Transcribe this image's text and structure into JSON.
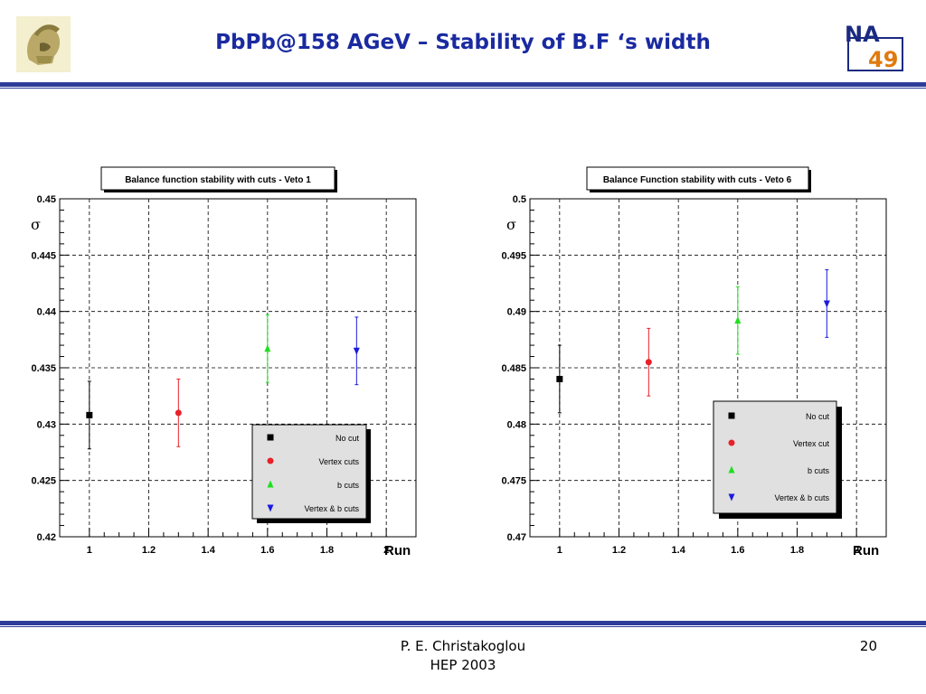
{
  "slide": {
    "title": "PbPb@158 AGeV – Stability of B.F ‘s width",
    "author": "P. E. Christakoglou",
    "conference": "HEP 2003",
    "page_number": "20",
    "right_logo_text_top": "NA",
    "right_logo_text_bottom": "49"
  },
  "colors": {
    "title": "#1a2aa0",
    "rule": "#2e3d9a",
    "no_cut": "#000000",
    "vertex_cuts": "#e8202a",
    "b_cuts": "#1ee01e",
    "vertex_b_cuts": "#1a1ae0",
    "legend_bg": "#e0e0e0"
  },
  "chart_data": [
    {
      "type": "scatter",
      "title": "Balance function stability with cuts - Veto 1",
      "ylabel": "σ",
      "xlabel": "Run",
      "xlim": [
        0.9,
        2.1
      ],
      "ylim": [
        0.42,
        0.45
      ],
      "xticks": [
        1,
        1.2,
        1.4,
        1.6,
        1.8,
        2
      ],
      "xtick_labels": [
        "1",
        "1.2",
        "1.4",
        "1.6",
        "1.8",
        "2"
      ],
      "yticks": [
        0.42,
        0.425,
        0.43,
        0.435,
        0.44,
        0.445,
        0.45
      ],
      "ytick_labels": [
        "0.42",
        "0.425",
        "0.43",
        "0.435",
        "0.44",
        "0.445",
        "0.45"
      ],
      "grid": true,
      "legend_position": "bottom-right",
      "series": [
        {
          "name": "No cut",
          "marker": "square",
          "color": "#000000",
          "x": 1.0,
          "y": 0.4308,
          "err": 0.003
        },
        {
          "name": "Vertex cuts",
          "marker": "circle",
          "color": "#e8202a",
          "x": 1.3,
          "y": 0.431,
          "err": 0.003
        },
        {
          "name": "b cuts",
          "marker": "triangle-up",
          "color": "#1ee01e",
          "x": 1.6,
          "y": 0.4367,
          "err": 0.003
        },
        {
          "name": "Vertex & b cuts",
          "marker": "triangle-down",
          "color": "#1a1ae0",
          "x": 1.9,
          "y": 0.4365,
          "err": 0.003
        }
      ]
    },
    {
      "type": "scatter",
      "title": "Balance Function stability with cuts - Veto 6",
      "ylabel": "σ",
      "xlabel": "Run",
      "xlim": [
        0.9,
        2.1
      ],
      "ylim": [
        0.47,
        0.5
      ],
      "xticks": [
        1,
        1.2,
        1.4,
        1.6,
        1.8,
        2
      ],
      "xtick_labels": [
        "1",
        "1.2",
        "1.4",
        "1.6",
        "1.8",
        "2"
      ],
      "yticks": [
        0.47,
        0.475,
        0.48,
        0.485,
        0.49,
        0.495,
        0.5
      ],
      "ytick_labels": [
        "0.47",
        "0.475",
        "0.48",
        "0.485",
        "0.49",
        "0.495",
        "0.5"
      ],
      "grid": true,
      "legend_position": "bottom-right",
      "series": [
        {
          "name": "No cut",
          "marker": "square",
          "color": "#000000",
          "x": 1.0,
          "y": 0.484,
          "err": 0.003
        },
        {
          "name": "Vertex cut",
          "marker": "circle",
          "color": "#e8202a",
          "x": 1.3,
          "y": 0.4855,
          "err": 0.003
        },
        {
          "name": "b cuts",
          "marker": "triangle-up",
          "color": "#1ee01e",
          "x": 1.6,
          "y": 0.4892,
          "err": 0.003
        },
        {
          "name": "Vertex & b cuts",
          "marker": "triangle-down",
          "color": "#1a1ae0",
          "x": 1.9,
          "y": 0.4907,
          "err": 0.003
        }
      ]
    }
  ]
}
